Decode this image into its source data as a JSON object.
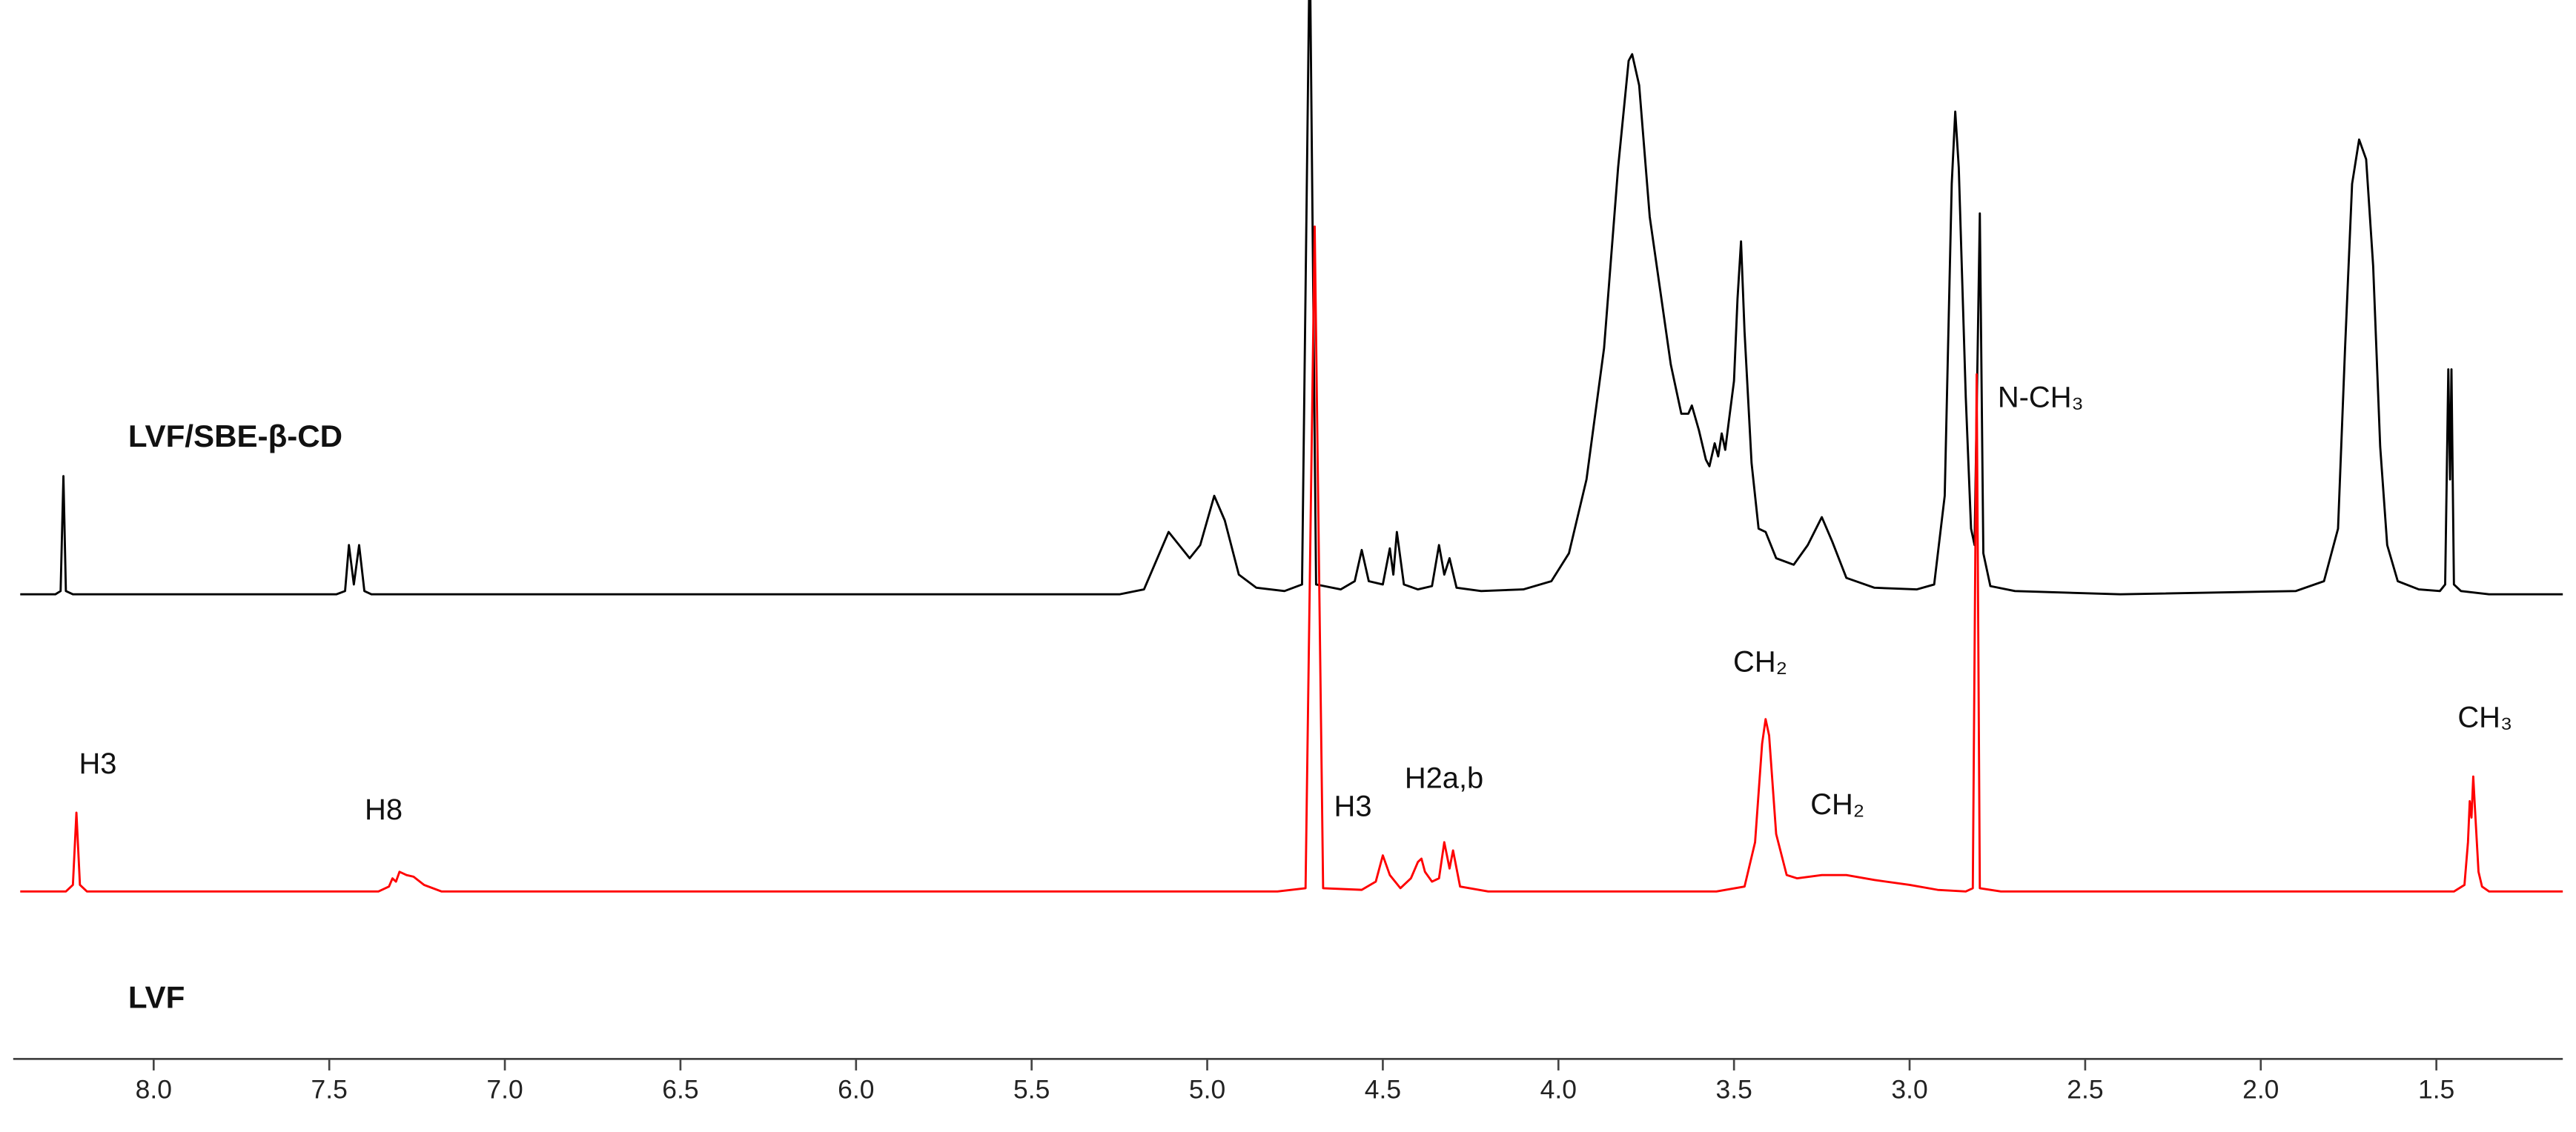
{
  "chart_data": {
    "type": "line",
    "xlim": [
      8.4,
      1.14
    ],
    "xticks": [
      {
        "value": 8,
        "label": "8.0"
      },
      7.5,
      {
        "value": 7,
        "label": "7.0"
      },
      6.5,
      {
        "value": 6,
        "label": "6.0"
      },
      5.5,
      {
        "value": 5,
        "label": "5.0"
      },
      4.5,
      {
        "value": 4,
        "label": "4.0"
      },
      3.5,
      {
        "value": 3,
        "label": "3.0"
      },
      2.5,
      {
        "value": 2,
        "label": "2.0"
      },
      1.5
    ],
    "series": [
      {
        "name": "LVF/SBE-β-CD",
        "color": "#000000",
        "x": [
          8.38,
          8.28,
          8.265,
          8.257,
          8.25,
          8.23,
          7.48,
          7.455,
          7.444,
          7.43,
          7.415,
          7.4,
          7.38,
          5.25,
          5.18,
          5.15,
          5.11,
          5.08,
          5.05,
          5.02,
          4.98,
          4.95,
          4.91,
          4.86,
          4.78,
          4.73,
          4.708,
          4.69,
          4.62,
          4.58,
          4.56,
          4.54,
          4.5,
          4.48,
          4.47,
          4.46,
          4.44,
          4.4,
          4.36,
          4.34,
          4.325,
          4.31,
          4.29,
          4.22,
          4.1,
          4.02,
          3.97,
          3.92,
          3.87,
          3.83,
          3.8,
          3.79,
          3.77,
          3.74,
          3.71,
          3.68,
          3.65,
          3.63,
          3.62,
          3.6,
          3.58,
          3.57,
          3.555,
          3.545,
          3.535,
          3.525,
          3.515,
          3.5,
          3.49,
          3.48,
          3.47,
          3.45,
          3.43,
          3.41,
          3.38,
          3.33,
          3.29,
          3.25,
          3.22,
          3.18,
          3.1,
          2.98,
          2.93,
          2.9,
          2.88,
          2.87,
          2.86,
          2.84,
          2.825,
          2.815,
          2.8,
          2.79,
          2.77,
          2.7,
          2.4,
          1.9,
          1.82,
          1.78,
          1.76,
          1.74,
          1.72,
          1.7,
          1.68,
          1.66,
          1.64,
          1.61,
          1.55,
          1.49,
          1.475,
          1.466,
          1.461,
          1.457,
          1.45,
          1.43,
          1.35,
          1.14
        ],
        "values": [
          0,
          0,
          2,
          72,
          2,
          0,
          0,
          2,
          30,
          6,
          30,
          2,
          0,
          0,
          3,
          18,
          38,
          30,
          22,
          30,
          60,
          45,
          12,
          4,
          2,
          6,
          400,
          6,
          3,
          8,
          27,
          8,
          6,
          28,
          12,
          38,
          6,
          3,
          5,
          30,
          12,
          22,
          4,
          2,
          3,
          8,
          25,
          70,
          150,
          260,
          325,
          329,
          310,
          230,
          185,
          140,
          110,
          110,
          115,
          100,
          82,
          78,
          92,
          84,
          98,
          88,
          105,
          130,
          180,
          215,
          160,
          80,
          40,
          38,
          22,
          18,
          30,
          47,
          32,
          10,
          4,
          3,
          6,
          60,
          250,
          294,
          260,
          120,
          40,
          30,
          232,
          25,
          5,
          2,
          0,
          2,
          8,
          40,
          150,
          250,
          277,
          265,
          200,
          90,
          30,
          8,
          3,
          2,
          6,
          137,
          70,
          137,
          6,
          2,
          0,
          0
        ]
      },
      {
        "name": "LVF",
        "color": "#ff0000",
        "x": [
          8.38,
          8.25,
          8.23,
          8.22,
          8.21,
          8.19,
          7.36,
          7.33,
          7.32,
          7.31,
          7.3,
          7.28,
          7.26,
          7.23,
          7.18,
          4.8,
          4.72,
          4.694,
          4.67,
          4.56,
          4.52,
          4.5,
          4.48,
          4.45,
          4.42,
          4.4,
          4.39,
          4.38,
          4.36,
          4.34,
          4.325,
          4.31,
          4.3,
          4.28,
          4.2,
          3.55,
          3.47,
          3.44,
          3.42,
          3.41,
          3.4,
          3.38,
          3.35,
          3.32,
          3.25,
          3.18,
          3.1,
          3.0,
          2.92,
          2.84,
          2.82,
          2.809,
          2.8,
          2.74,
          1.45,
          1.42,
          1.41,
          1.405,
          1.4,
          1.395,
          1.39,
          1.38,
          1.37,
          1.35,
          1.14
        ],
        "values": [
          0,
          0,
          4,
          48,
          4,
          0,
          0,
          3,
          8,
          6,
          12,
          10,
          9,
          4,
          0,
          0,
          2,
          405,
          2,
          1,
          6,
          22,
          10,
          2,
          8,
          18,
          20,
          12,
          6,
          8,
          30,
          14,
          25,
          3,
          0,
          0,
          3,
          30,
          90,
          105,
          95,
          35,
          10,
          8,
          10,
          10,
          7,
          4,
          1,
          0,
          2,
          315,
          2,
          0,
          0,
          4,
          30,
          55,
          45,
          70,
          50,
          12,
          3,
          0,
          0
        ]
      }
    ],
    "annotations": [
      "H3",
      "H8",
      "H3",
      "H2a,b",
      "CH₂",
      "CH₂",
      "N-CH₃",
      "CH₃"
    ]
  }
}
